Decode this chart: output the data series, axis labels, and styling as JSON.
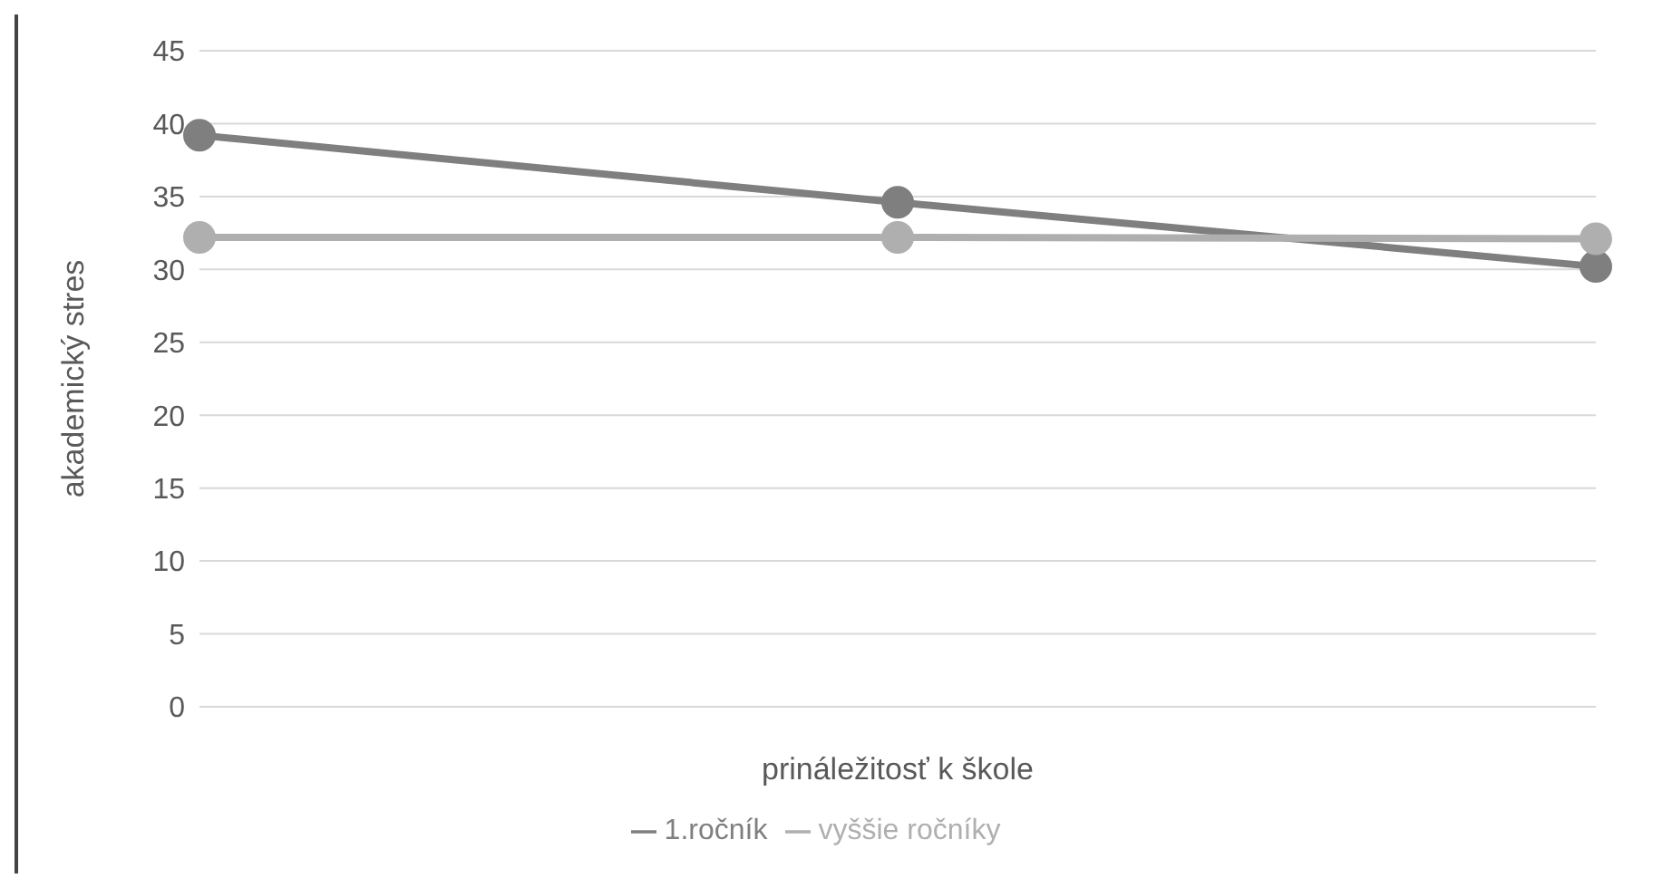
{
  "chart_data": {
    "type": "line",
    "xlabel": "prináležitosť k škole",
    "ylabel": "akademický stres",
    "categories": [
      null,
      null,
      null
    ],
    "series": [
      {
        "name": "1.ročník",
        "color": "#7f7f7f",
        "values": [
          39.2,
          34.6,
          30.2
        ]
      },
      {
        "name": "vyššie ročníky",
        "color": "#afafaf",
        "values": [
          32.2,
          32.2,
          32.1
        ]
      }
    ],
    "ylim": [
      0,
      45
    ],
    "yticks": [
      0,
      5,
      10,
      15,
      20,
      25,
      30,
      35,
      40,
      45
    ],
    "grid": "y",
    "legend": "bottom",
    "marker": "circle",
    "line_style": "solid"
  }
}
